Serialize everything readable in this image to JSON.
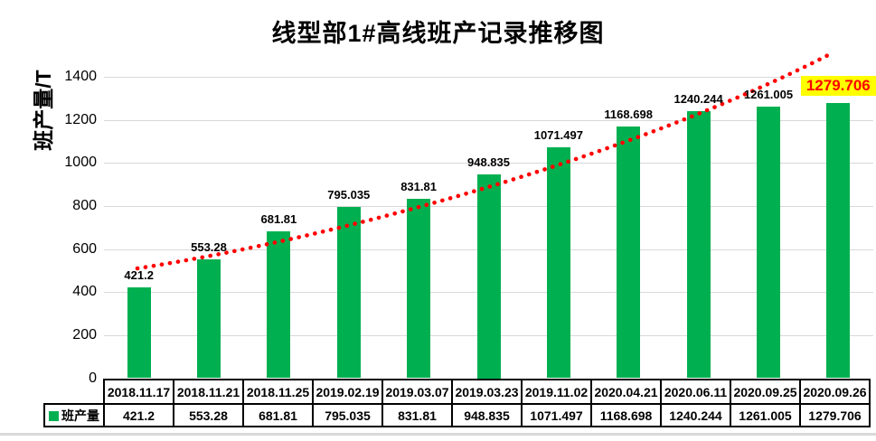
{
  "title": "线型部1#高线班产记录推移图",
  "y_axis": {
    "title": "班产量/T",
    "ticks": [
      0,
      200,
      400,
      600,
      800,
      1000,
      1200,
      1400
    ]
  },
  "legend": {
    "label": "班产量"
  },
  "colors": {
    "bar": "#00B050",
    "trendline": "#FF0000",
    "gridline": "#D9D9D9",
    "highlight_background": "#FFFF00",
    "highlight_text": "#FF0000",
    "label_text": "#000000"
  },
  "chart_data": {
    "type": "bar",
    "title": "线型部1#高线班产记录推移图",
    "xlabel": "",
    "ylabel": "班产量/T",
    "ylim": [
      0,
      1400
    ],
    "grid": true,
    "legend_position": "bottom-table",
    "categories": [
      "2018.11.17",
      "2018.11.21",
      "2018.11.25",
      "2019.02.19",
      "2019.03.07",
      "2019.03.23",
      "2019.11.02",
      "2020.04.21",
      "2020.06.11",
      "2020.09.25",
      "2020.09.26"
    ],
    "series": [
      {
        "name": "班产量",
        "values": [
          421.2,
          553.28,
          681.81,
          795.035,
          831.81,
          948.835,
          1071.497,
          1168.698,
          1240.244,
          1261.005,
          1279.706
        ]
      }
    ],
    "data_labels": [
      "421.2",
      "553.28",
      "681.81",
      "795.035",
      "831.81",
      "948.835",
      "1071.497",
      "1168.698",
      "1240.244",
      "1261.005",
      "1279.706"
    ],
    "highlight": {
      "index": 10,
      "label": "1279.706",
      "text_color": "#FF0000",
      "background": "#FFFF00"
    },
    "trendline": {
      "style": "dotted",
      "color": "#FF0000",
      "shape": "upward curve"
    }
  }
}
